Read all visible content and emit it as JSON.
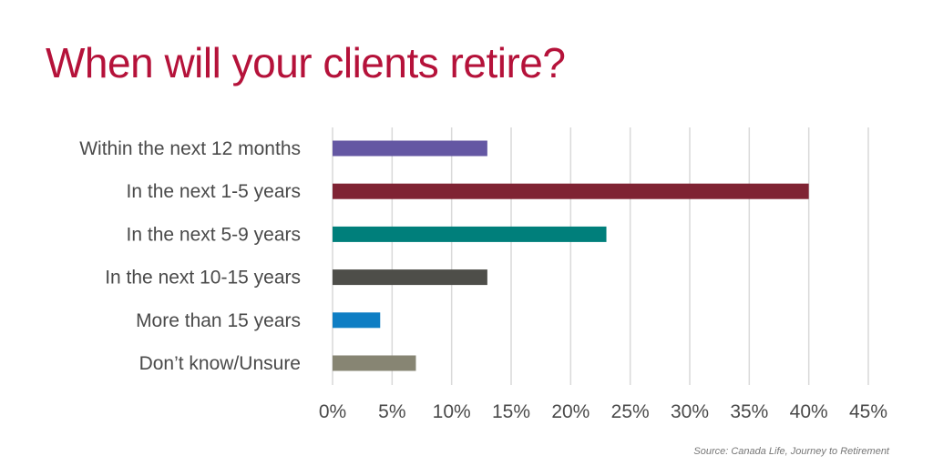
{
  "title": "When will your clients retire?",
  "source": "Source: Canada Life, Journey to Retirement",
  "chart_data": {
    "type": "bar",
    "orientation": "horizontal",
    "categories": [
      "Within the next 12 months",
      "In the next 1-5 years",
      "In the next 5-9 years",
      "In the next 10-15 years",
      "More than 15 years",
      "Don’t know/Unsure"
    ],
    "values": [
      13,
      40,
      23,
      13,
      4,
      7
    ],
    "colors": [
      "#6457a3",
      "#7f2333",
      "#007f7b",
      "#4e4e49",
      "#0e7ec4",
      "#878573"
    ],
    "xlim": [
      0,
      45
    ],
    "xticks": [
      0,
      5,
      10,
      15,
      20,
      25,
      30,
      35,
      40,
      45
    ],
    "tick_labels": [
      "0%",
      "5%",
      "10%",
      "15%",
      "20%",
      "25%",
      "30%",
      "35%",
      "40%",
      "45%"
    ],
    "grid": "vertical",
    "legend": "none"
  }
}
